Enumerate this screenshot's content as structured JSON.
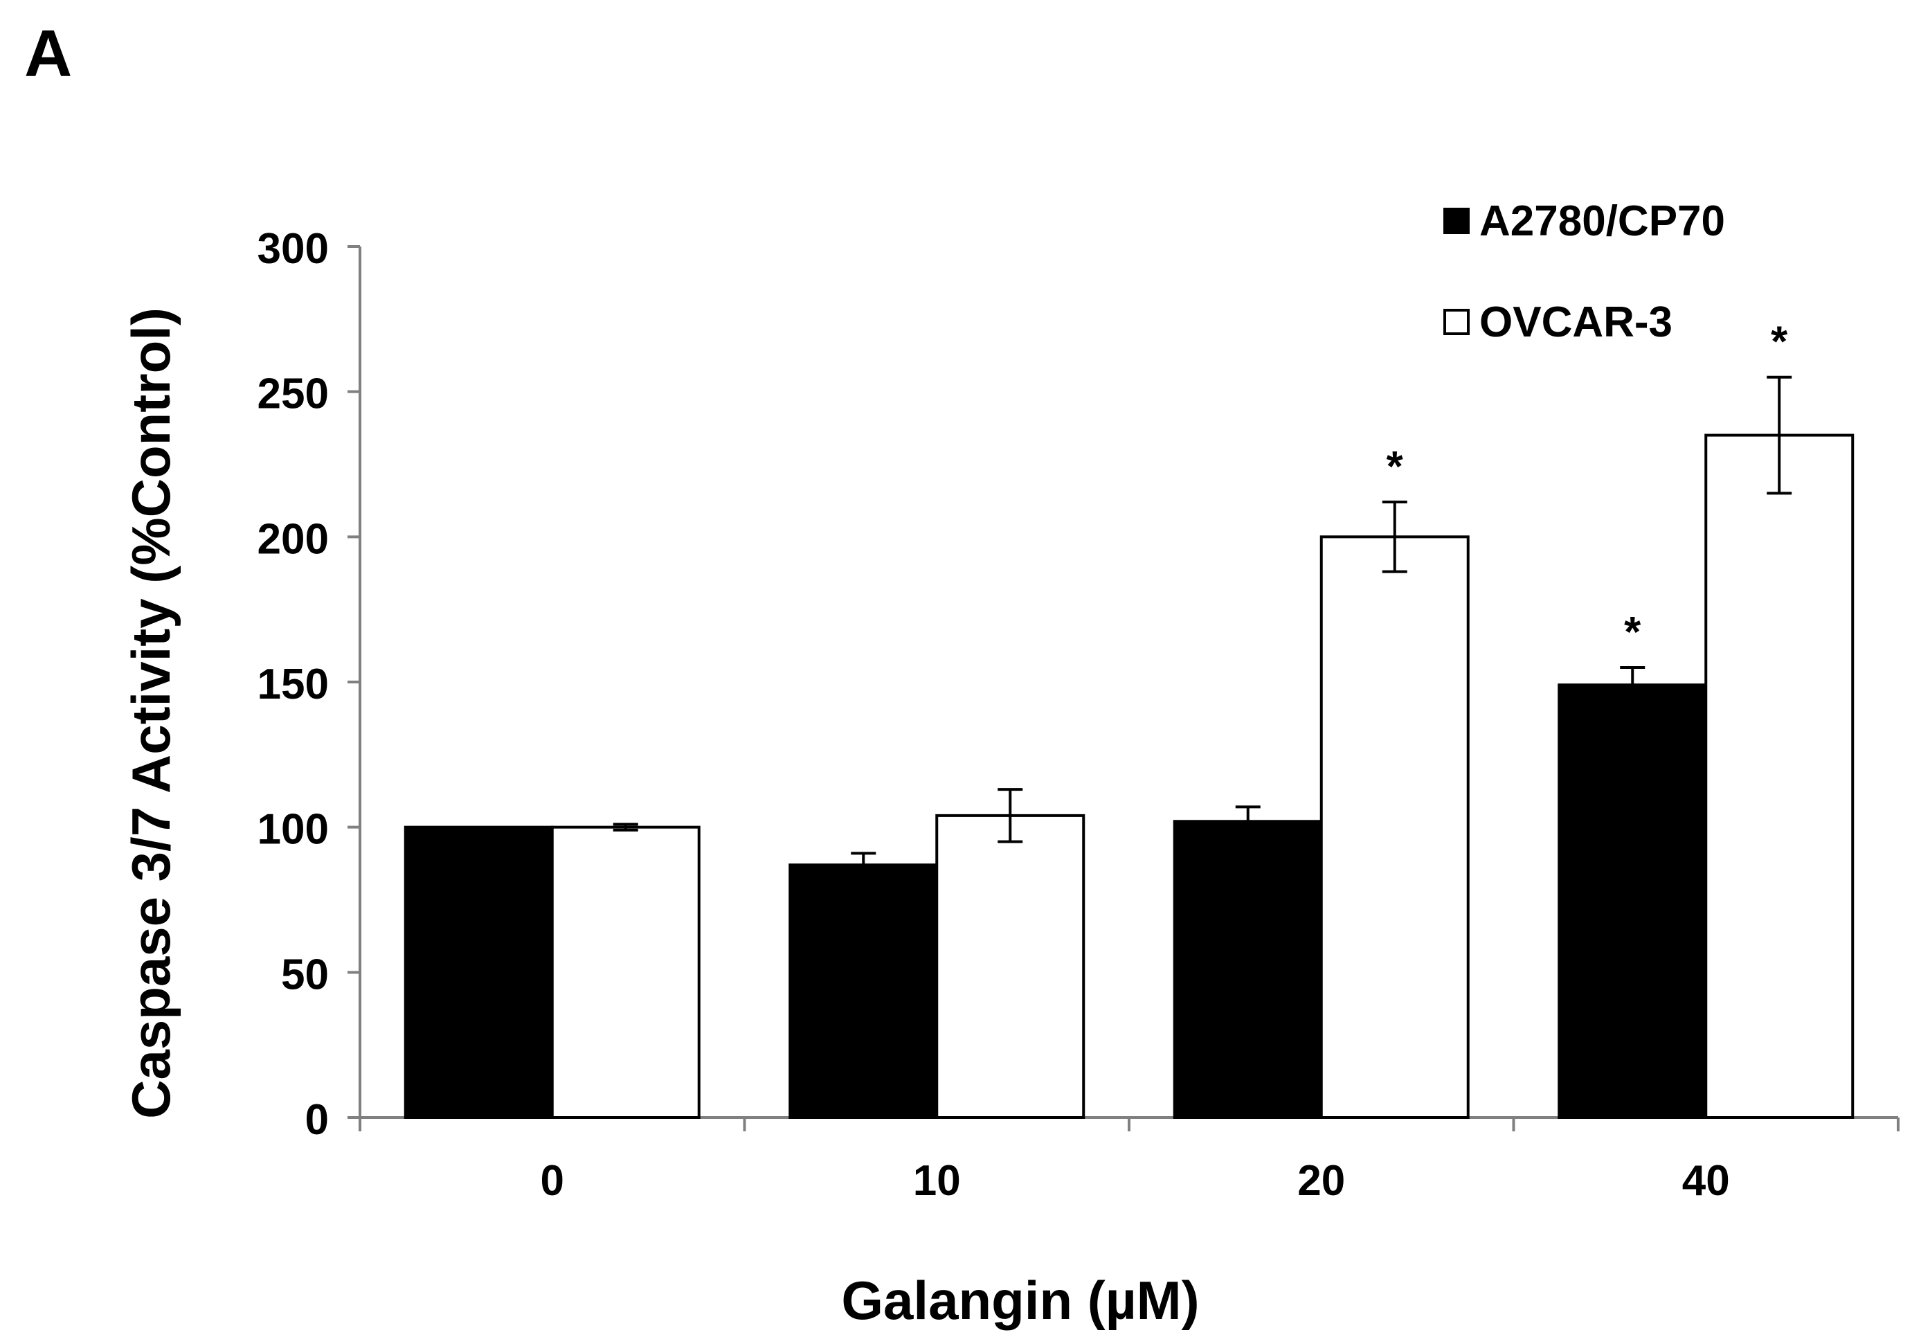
{
  "panel_label": "A",
  "chart_data": {
    "type": "bar",
    "title": "",
    "xlabel": "Galangin (µM)",
    "ylabel": "Caspase 3/7 Activity (%Control)",
    "categories": [
      "0",
      "10",
      "20",
      "40"
    ],
    "ylim": [
      0,
      300
    ],
    "yticks": [
      0,
      50,
      100,
      150,
      200,
      250,
      300
    ],
    "grid": false,
    "legend_position": "top-right",
    "series": [
      {
        "name": "A2780/CP70",
        "fill": "#000000",
        "values": [
          100,
          87,
          102,
          149
        ],
        "errors": [
          0,
          4,
          5,
          6
        ],
        "significance": [
          "",
          "",
          "",
          "*"
        ]
      },
      {
        "name": "OVCAR-3",
        "fill": "#ffffff",
        "values": [
          100,
          104,
          200,
          235
        ],
        "errors": [
          1,
          9,
          12,
          20
        ],
        "significance": [
          "",
          "",
          "*",
          "*"
        ]
      }
    ]
  }
}
